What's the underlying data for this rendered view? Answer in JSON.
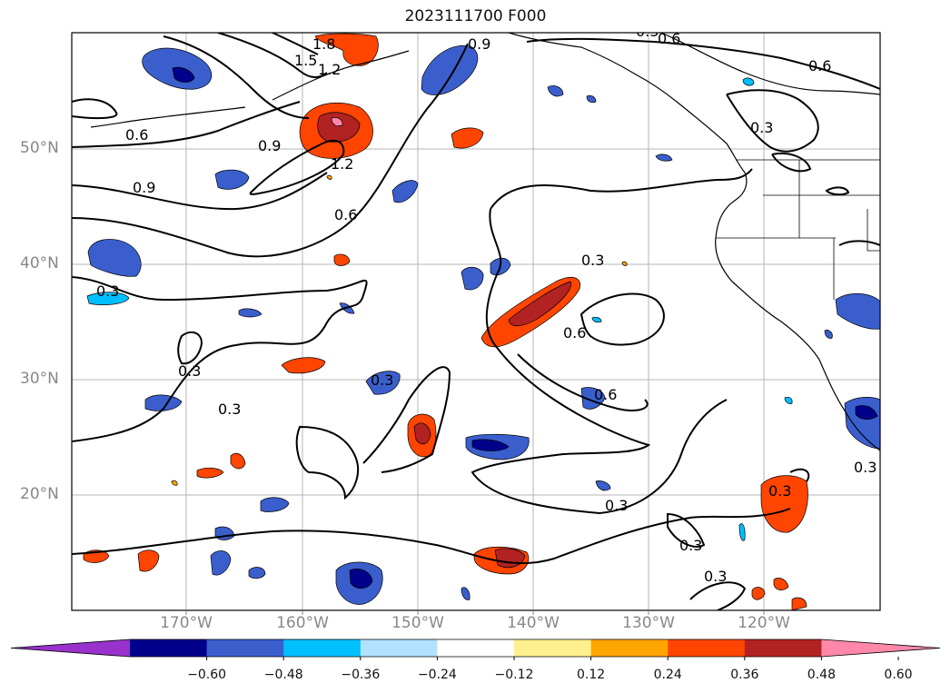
{
  "title": "2023111700 F000",
  "lat_labels": [
    "50°N",
    "40°N",
    "30°N",
    "20°N"
  ],
  "lon_labels": [
    "170°W",
    "160°W",
    "150°W",
    "140°W",
    "130°W",
    "120°W"
  ],
  "contour_labels": [
    "1.8",
    "1.5",
    "1.2",
    "0.9",
    "0.6",
    "0.6",
    "0.6",
    "0.9",
    "0.9",
    "1.2",
    "0.6",
    "0.3",
    "0.3",
    "0.3",
    "0.3",
    "0.3",
    "0.6",
    "0.6",
    "0.3",
    "0.3",
    "0.3",
    "0.3",
    "0.3",
    "0.3",
    "0.3"
  ],
  "colorbar": {
    "tick_labels": [
      "−0.60",
      "−0.48",
      "−0.36",
      "−0.24",
      "−0.12",
      "0.12",
      "0.24",
      "0.36",
      "0.48",
      "0.60"
    ],
    "colors": [
      "#9932cc",
      "#00008b",
      "#3a5fcd",
      "#00bfff",
      "#b0e2ff",
      "#ffffff",
      "#fff08f",
      "#ffa500",
      "#ff4500",
      "#b22222",
      "#ff88aa"
    ]
  }
}
